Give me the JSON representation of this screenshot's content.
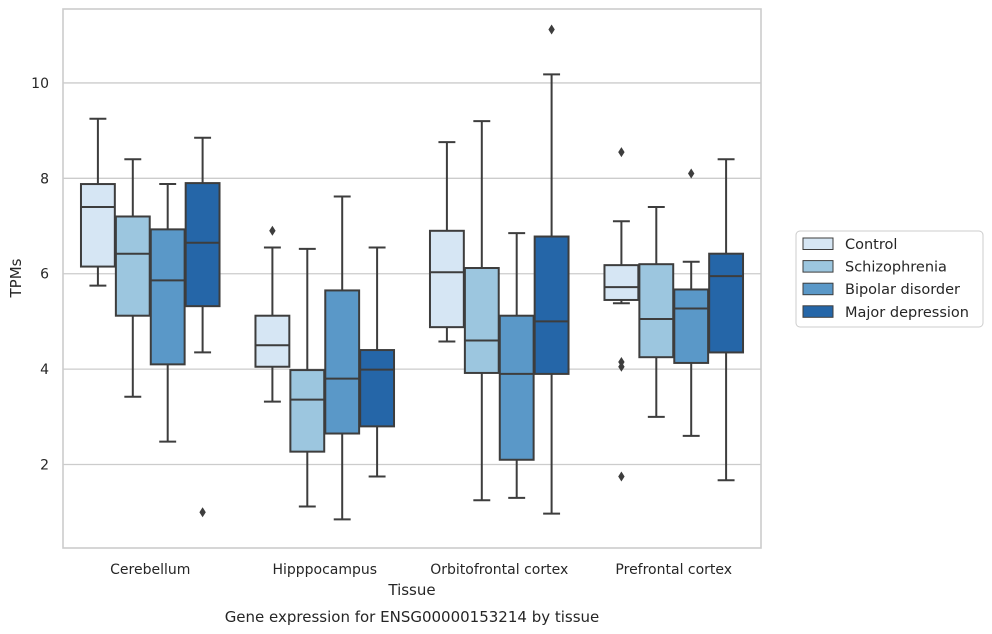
{
  "chart_data": {
    "type": "box",
    "caption": "Gene expression for ENSG00000153214 by tissue",
    "xlabel": "Tissue",
    "ylabel": "TPMs",
    "ylim": [
      0.25,
      11.55
    ],
    "yticks": [
      2,
      4,
      6,
      8,
      10
    ],
    "grid": "horizontal",
    "legend_position": "right",
    "categories": [
      "Cerebellum",
      "Hipppocampus",
      "Orbitofrontal cortex",
      "Prefrontal cortex"
    ],
    "series": [
      {
        "name": "Control",
        "color": "#d6e6f4",
        "boxes": [
          {
            "whislo": 5.75,
            "q1": 6.15,
            "med": 7.4,
            "q3": 7.88,
            "whishi": 9.25,
            "fliers": []
          },
          {
            "whislo": 3.32,
            "q1": 4.05,
            "med": 4.5,
            "q3": 5.12,
            "whishi": 6.55,
            "fliers": [
              6.9
            ]
          },
          {
            "whislo": 4.58,
            "q1": 4.88,
            "med": 6.03,
            "q3": 6.9,
            "whishi": 8.76,
            "fliers": []
          },
          {
            "whislo": 5.38,
            "q1": 5.45,
            "med": 5.72,
            "q3": 6.18,
            "whishi": 7.1,
            "fliers": [
              8.55,
              4.15,
              4.05,
              1.75
            ]
          }
        ]
      },
      {
        "name": "Schizophrenia",
        "color": "#9cc6df",
        "boxes": [
          {
            "whislo": 3.42,
            "q1": 5.12,
            "med": 6.42,
            "q3": 7.2,
            "whishi": 8.4,
            "fliers": []
          },
          {
            "whislo": 1.12,
            "q1": 2.27,
            "med": 3.36,
            "q3": 3.98,
            "whishi": 6.52,
            "fliers": []
          },
          {
            "whislo": 1.25,
            "q1": 3.92,
            "med": 4.6,
            "q3": 6.12,
            "whishi": 9.2,
            "fliers": []
          },
          {
            "whislo": 3.0,
            "q1": 4.25,
            "med": 5.05,
            "q3": 6.2,
            "whishi": 7.4,
            "fliers": []
          }
        ]
      },
      {
        "name": "Bipolar disorder",
        "color": "#5a98c8",
        "boxes": [
          {
            "whislo": 2.48,
            "q1": 4.1,
            "med": 5.86,
            "q3": 6.93,
            "whishi": 7.88,
            "fliers": []
          },
          {
            "whislo": 0.85,
            "q1": 2.65,
            "med": 3.8,
            "q3": 5.65,
            "whishi": 7.62,
            "fliers": []
          },
          {
            "whislo": 1.3,
            "q1": 2.1,
            "med": 3.9,
            "q3": 5.12,
            "whishi": 6.85,
            "fliers": []
          },
          {
            "whislo": 2.6,
            "q1": 4.13,
            "med": 5.27,
            "q3": 5.67,
            "whishi": 6.25,
            "fliers": [
              8.1
            ]
          }
        ]
      },
      {
        "name": "Major depression",
        "color": "#2566a8",
        "boxes": [
          {
            "whislo": 4.35,
            "q1": 5.32,
            "med": 6.65,
            "q3": 7.9,
            "whishi": 8.85,
            "fliers": [
              1.0
            ]
          },
          {
            "whislo": 1.75,
            "q1": 2.8,
            "med": 3.99,
            "q3": 4.4,
            "whishi": 6.55,
            "fliers": []
          },
          {
            "whislo": 0.97,
            "q1": 3.9,
            "med": 5.0,
            "q3": 6.78,
            "whishi": 10.18,
            "fliers": [
              11.12
            ]
          },
          {
            "whislo": 1.67,
            "q1": 4.35,
            "med": 5.95,
            "q3": 6.42,
            "whishi": 8.4,
            "fliers": []
          }
        ]
      }
    ]
  }
}
